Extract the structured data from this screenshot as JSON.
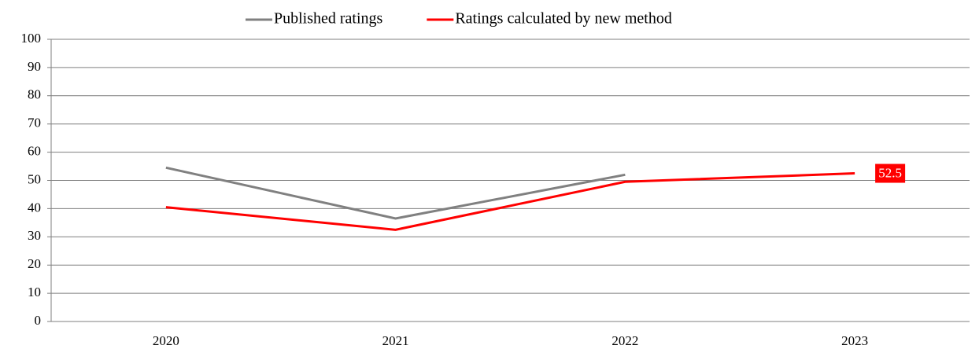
{
  "chart_data": {
    "type": "line",
    "categories": [
      "2020",
      "2021",
      "2022",
      "2023"
    ],
    "series": [
      {
        "name": "Published ratings",
        "color": "#808080",
        "values": [
          54.5,
          36.5,
          52,
          null
        ]
      },
      {
        "name": "Ratings calculated by new method",
        "color": "#ff0000",
        "values": [
          40.5,
          32.5,
          49.5,
          52.5
        ]
      }
    ],
    "ylim": [
      0,
      100
    ],
    "yticks": [
      0,
      10,
      20,
      30,
      40,
      50,
      60,
      70,
      80,
      90,
      100
    ],
    "grid": true,
    "legend": "top"
  }
}
